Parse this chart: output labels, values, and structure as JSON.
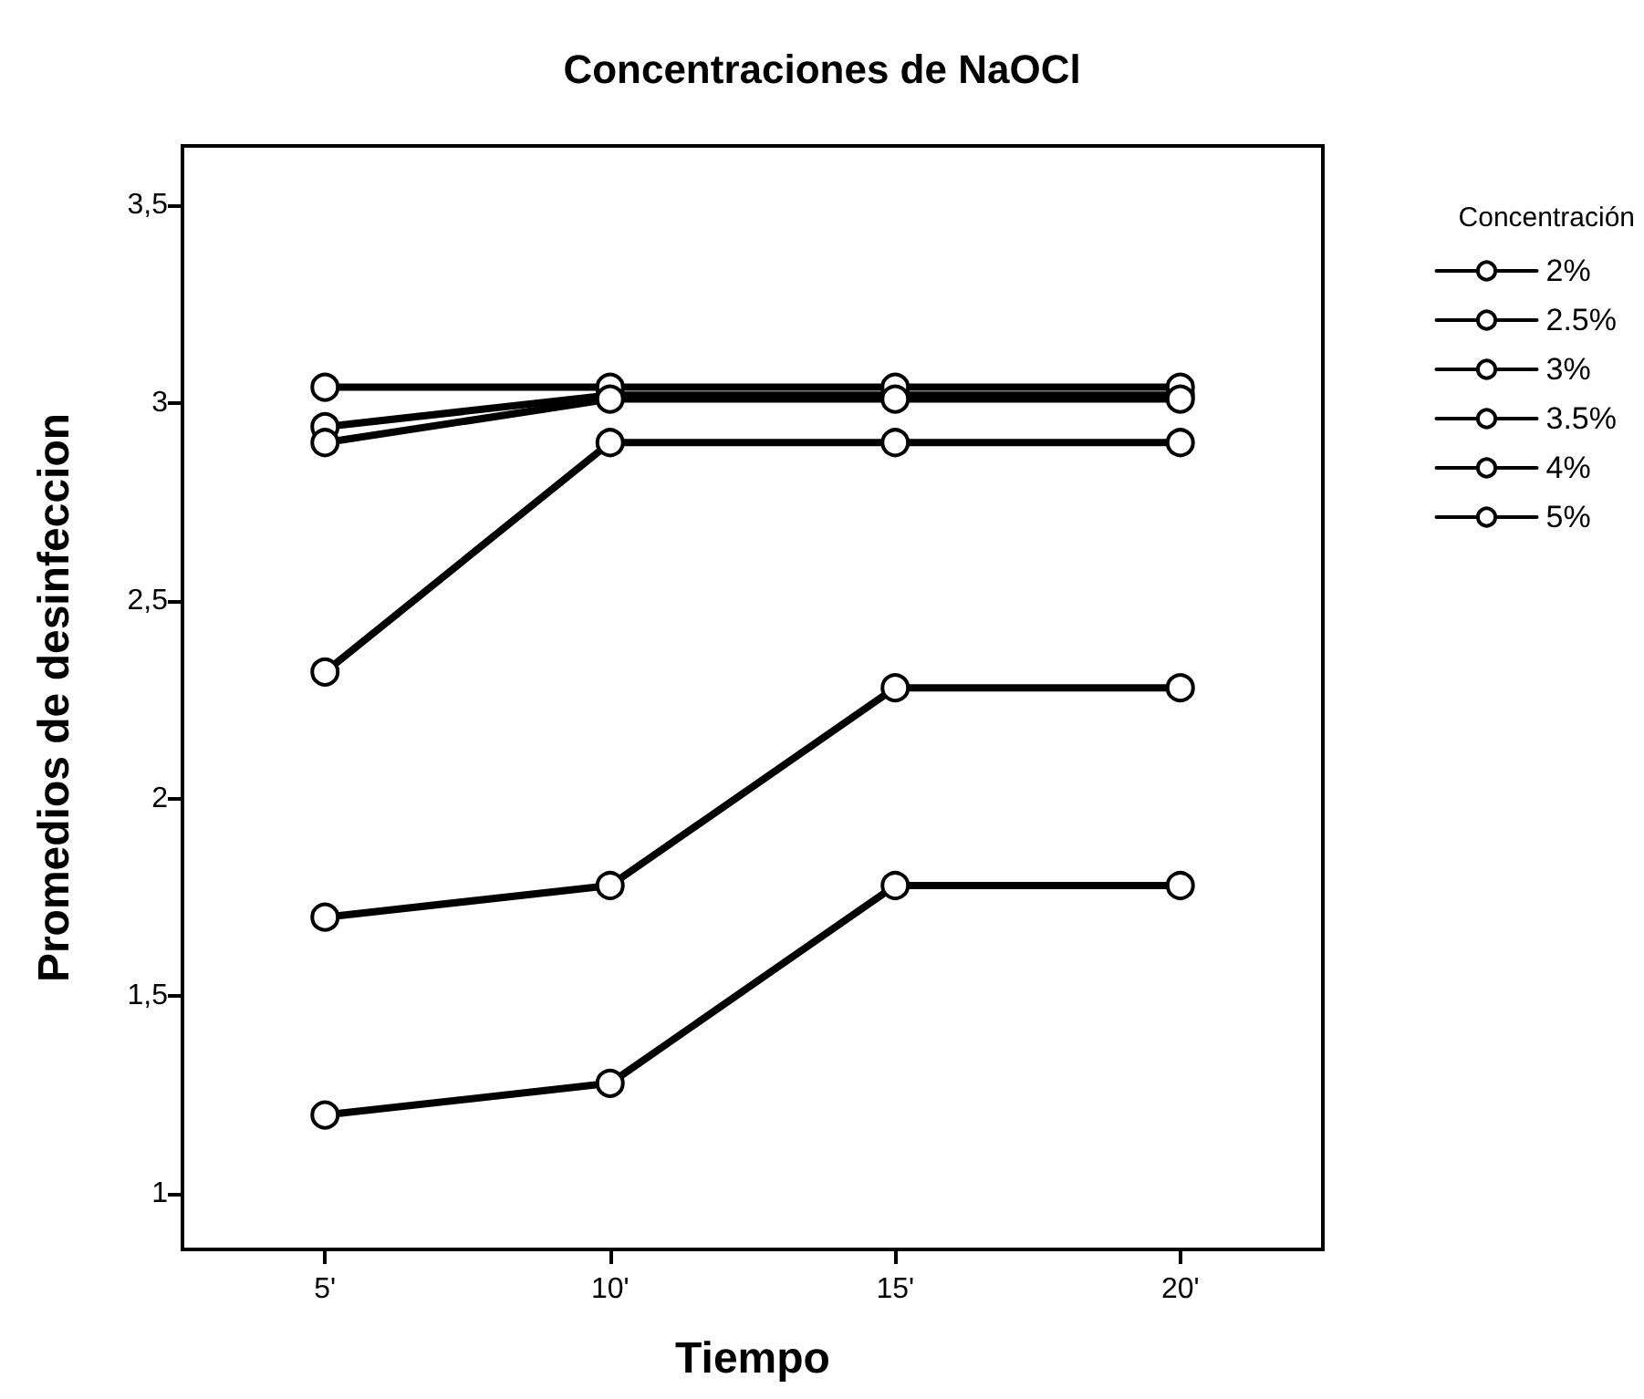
{
  "chart_data": {
    "type": "line",
    "title": "Concentraciones de NaOCl",
    "xlabel": "Tiempo",
    "ylabel": "Promedios de desinfeccion",
    "legend_title": "Concentración",
    "categories": [
      "5'",
      "10'",
      "15'",
      "20'"
    ],
    "series": [
      {
        "name": "2%",
        "color": "#000000",
        "values": [
          1.2,
          1.28,
          1.78,
          1.78
        ]
      },
      {
        "name": "2.5%",
        "color": "#000000",
        "values": [
          1.7,
          1.78,
          2.28,
          2.28
        ]
      },
      {
        "name": "3%",
        "color": "#000000",
        "values": [
          2.32,
          2.9,
          2.9,
          2.9
        ]
      },
      {
        "name": "3.5%",
        "color": "#000000",
        "values": [
          2.94,
          3.02,
          3.02,
          3.02
        ]
      },
      {
        "name": "4%",
        "color": "#000000",
        "values": [
          3.04,
          3.04,
          3.04,
          3.04
        ]
      },
      {
        "name": "5%",
        "color": "#000000",
        "values": [
          2.9,
          3.01,
          3.01,
          3.01
        ]
      }
    ],
    "ylim": [
      0.86,
      3.65
    ],
    "yticks": [
      1,
      {
        "value": 1.5,
        "label": "1,5"
      },
      2,
      {
        "value": 2.5,
        "label": "2,5"
      },
      3,
      {
        "value": 3.5,
        "label": "3,5"
      }
    ],
    "grid": false,
    "legend": "right",
    "marker": "circle",
    "line_style": "solid"
  }
}
